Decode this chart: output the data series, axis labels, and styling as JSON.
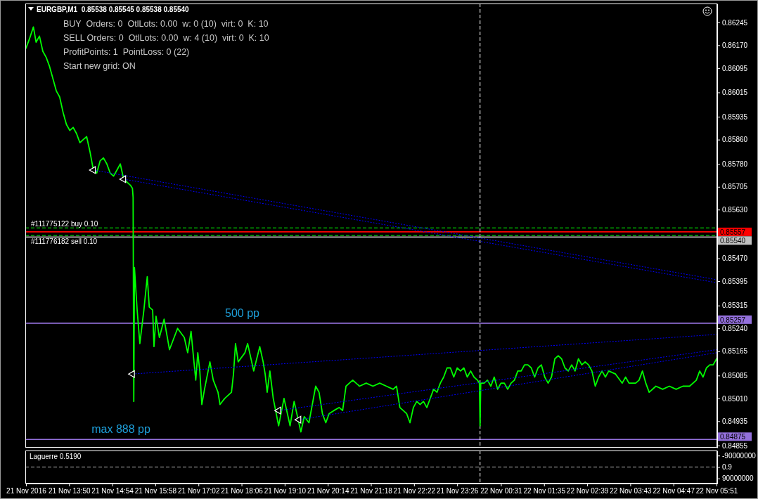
{
  "chart_data": [
    {
      "type": "line",
      "title": "EURGBP,M1  0.85538 0.85545 0.85538 0.85540",
      "annotations": [
        "BUY  Orders: 0  OtlLots: 0.00  w: 0 (10)  virt: 0  K: 10",
        "SELL Orders: 0  OtlLots: 0.00  w: 4 (10)  virt: 0  K: 10",
        "ProfitPoints: 1  PointLoss: 0 (22)",
        "Start new grid: ON",
        {
          "text": "500 pp",
          "x": "2016-11-21T18:07",
          "y": 0.85257
        },
        {
          "text": "max 888 pp",
          "x": "2016-11-21T15:07",
          "y": 0.84875
        }
      ],
      "xlim": [
        "2016-11-21T12:45",
        "2016-11-22T05:52"
      ],
      "ylim": [
        0.84848,
        0.86307
      ],
      "yticks": [
        0.86245,
        {
          "value": 0.8617,
          "label": "0.86170"
        },
        0.86095,
        0.86015,
        0.85935,
        {
          "value": 0.8586,
          "label": "0.85860"
        },
        {
          "value": 0.8578,
          "label": "0.85780"
        },
        0.85705,
        {
          "value": 0.8563,
          "label": "0.85630"
        },
        {
          "value": 0.8547,
          "label": "0.85470"
        },
        0.85395,
        0.85315,
        {
          "value": 0.8524,
          "label": "0.85240"
        },
        0.85165,
        0.85085,
        {
          "value": 0.8501,
          "label": "0.85010"
        },
        0.84935,
        0.84855
      ],
      "tick_labels": "y",
      "series": [
        {
          "color": "#00ff00",
          "x": [
            "2016-11-21T12:46",
            "2016-11-21T12:51",
            "2016-11-21T12:57",
            "2016-11-21T13:01",
            "2016-11-21T13:06",
            "2016-11-21T13:11",
            "2016-11-21T13:16",
            "2016-11-21T13:21",
            "2016-11-21T13:26",
            "2016-11-21T13:31",
            "2016-11-21T13:36",
            "2016-11-21T13:41",
            "2016-11-21T13:46",
            "2016-11-21T13:51",
            "2016-11-21T13:56",
            "2016-11-21T14:01",
            "2016-11-21T14:06",
            "2016-11-21T14:11",
            "2016-11-21T14:16",
            "2016-11-21T14:21",
            "2016-11-21T14:26",
            "2016-11-21T14:31",
            "2016-11-21T14:36",
            "2016-11-21T14:41",
            "2016-11-21T14:46",
            "2016-11-21T14:51",
            "2016-11-21T14:56",
            "2016-11-21T15:01",
            "2016-11-21T15:06",
            "2016-11-21T15:11",
            "2016-11-21T15:16",
            "2016-11-21T15:21",
            "2016-11-21T15:24",
            "2016-11-21T15:25",
            "2016-11-21T15:26",
            "2016-11-21T15:27",
            "2016-11-21T15:31",
            "2016-11-21T15:35",
            "2016-11-21T15:41",
            "2016-11-21T15:46",
            "2016-11-21T15:49",
            "2016-11-21T15:54",
            "2016-11-21T15:56",
            "2016-11-21T15:59",
            "2016-11-21T16:04",
            "2016-11-21T16:11",
            "2016-11-21T16:19",
            "2016-11-21T16:31",
            "2016-11-21T16:41",
            "2016-11-21T16:46",
            "2016-11-21T16:51",
            "2016-11-21T16:54",
            "2016-11-21T16:58",
            "2016-11-21T17:01",
            "2016-11-21T17:04",
            "2016-11-21T17:07",
            "2016-11-21T17:11",
            "2016-11-21T17:19",
            "2016-11-21T17:24",
            "2016-11-21T17:31",
            "2016-11-21T17:34",
            "2016-11-21T17:41",
            "2016-11-21T17:51",
            "2016-11-21T17:54",
            "2016-11-21T17:57",
            "2016-11-21T18:01",
            "2016-11-21T18:11",
            "2016-11-21T18:15",
            "2016-11-21T18:24",
            "2016-11-21T18:33",
            "2016-11-21T18:38",
            "2016-11-21T18:41",
            "2016-11-21T18:44",
            "2016-11-21T18:48",
            "2016-11-21T18:53",
            "2016-11-21T19:01",
            "2016-11-21T19:09",
            "2016-11-21T19:18",
            "2016-11-21T19:24",
            "2016-11-21T19:34",
            "2016-11-21T19:39",
            "2016-11-21T19:46",
            "2016-11-21T19:51",
            "2016-11-21T19:56",
            "2016-11-21T20:01",
            "2016-11-21T20:06",
            "2016-11-21T20:11",
            "2016-11-21T20:16",
            "2016-11-21T20:23",
            "2016-11-21T20:31",
            "2016-11-21T20:36",
            "2016-11-21T20:41",
            "2016-11-21T20:46",
            "2016-11-21T20:51",
            "2016-11-21T21:01",
            "2016-11-21T21:11",
            "2016-11-21T21:21",
            "2016-11-21T21:31",
            "2016-11-21T21:41",
            "2016-11-21T21:51",
            "2016-11-21T21:56",
            "2016-11-21T22:01",
            "2016-11-21T22:06",
            "2016-11-21T22:11",
            "2016-11-21T22:16",
            "2016-11-21T22:21",
            "2016-11-21T22:26",
            "2016-11-21T22:31",
            "2016-11-21T22:36",
            "2016-11-21T22:41",
            "2016-11-21T22:46",
            "2016-11-21T22:51",
            "2016-11-21T22:56",
            "2016-11-21T23:01",
            "2016-11-21T23:06",
            "2016-11-21T23:11",
            "2016-11-21T23:16",
            "2016-11-21T23:21",
            "2016-11-21T23:26",
            "2016-11-21T23:31",
            "2016-11-21T23:36",
            "2016-11-21T23:41",
            "2016-11-21T23:46",
            "2016-11-21T23:51",
            "2016-11-21T23:56",
            "2016-11-21T23:59",
            "2016-11-22T00:00",
            "2016-11-22T00:01",
            "2016-11-22T00:06",
            "2016-11-22T00:11",
            "2016-11-22T00:16",
            "2016-11-22T00:21",
            "2016-11-22T00:26",
            "2016-11-22T00:31",
            "2016-11-22T00:36",
            "2016-11-22T00:41",
            "2016-11-22T00:46",
            "2016-11-22T00:51",
            "2016-11-22T00:56",
            "2016-11-22T01:01",
            "2016-11-22T01:06",
            "2016-11-22T01:11",
            "2016-11-22T01:16",
            "2016-11-22T01:21",
            "2016-11-22T01:26",
            "2016-11-22T01:31",
            "2016-11-22T01:36",
            "2016-11-22T01:41",
            "2016-11-22T01:46",
            "2016-11-22T01:51",
            "2016-11-22T01:56",
            "2016-11-22T02:01",
            "2016-11-22T02:06",
            "2016-11-22T02:11",
            "2016-11-22T02:16",
            "2016-11-22T02:21",
            "2016-11-22T02:26",
            "2016-11-22T02:31",
            "2016-11-22T02:36",
            "2016-11-22T02:41",
            "2016-11-22T02:46",
            "2016-11-22T02:51",
            "2016-11-22T02:56",
            "2016-11-22T03:01",
            "2016-11-22T03:06",
            "2016-11-22T03:11",
            "2016-11-22T03:21",
            "2016-11-22T03:31",
            "2016-11-22T03:36",
            "2016-11-22T03:41",
            "2016-11-22T03:51",
            "2016-11-22T03:56",
            "2016-11-22T04:01",
            "2016-11-22T04:06",
            "2016-11-22T04:11",
            "2016-11-22T04:21",
            "2016-11-22T04:31",
            "2016-11-22T04:41",
            "2016-11-22T04:51",
            "2016-11-22T05:01",
            "2016-11-22T05:11",
            "2016-11-22T05:21",
            "2016-11-22T05:26",
            "2016-11-22T05:31",
            "2016-11-22T05:36",
            "2016-11-22T05:41",
            "2016-11-22T05:46",
            "2016-11-22T05:51"
          ],
          "values": [
            0.8616,
            0.8619,
            0.8623,
            0.8618,
            0.862,
            0.8615,
            0.8613,
            0.861,
            0.8606,
            0.8602,
            0.86,
            0.8595,
            0.8591,
            0.8589,
            0.859,
            0.8588,
            0.8585,
            0.8586,
            0.8587,
            0.8582,
            0.8576,
            0.8575,
            0.8579,
            0.858,
            0.8578,
            0.8575,
            0.8574,
            0.8576,
            0.8578,
            0.8573,
            0.8572,
            0.8571,
            0.857,
            0.8567,
            0.85,
            0.8544,
            0.853,
            0.8519,
            0.853,
            0.8541,
            0.8531,
            0.853,
            0.8518,
            0.8528,
            0.8521,
            0.8527,
            0.8517,
            0.8524,
            0.8521,
            0.8516,
            0.8523,
            0.8516,
            0.8507,
            0.8516,
            0.851,
            0.8499,
            0.8504,
            0.8513,
            0.8507,
            0.8503,
            0.8499,
            0.8501,
            0.8503,
            0.8509,
            0.8519,
            0.8513,
            0.8516,
            0.8519,
            0.851,
            0.8518,
            0.8513,
            0.8509,
            0.8503,
            0.851,
            0.8501,
            0.8492,
            0.8501,
            0.8492,
            0.85,
            0.849,
            0.8495,
            0.8493,
            0.8499,
            0.8505,
            0.8503,
            0.8496,
            0.8493,
            0.8496,
            0.8497,
            0.8498,
            0.8497,
            0.8505,
            0.8506,
            0.8507,
            0.8505,
            0.8506,
            0.8505,
            0.8506,
            0.8505,
            0.8504,
            0.8505,
            0.8498,
            0.8497,
            0.8496,
            0.8493,
            0.8498,
            0.85,
            0.8499,
            0.85,
            0.8498,
            0.8501,
            0.8504,
            0.8503,
            0.8506,
            0.8508,
            0.8511,
            0.8511,
            0.8508,
            0.8511,
            0.851,
            0.8511,
            0.8508,
            0.851,
            0.8508,
            0.8507,
            0.8506,
            0.8492,
            0.8506,
            0.8506,
            0.8507,
            0.8505,
            0.8508,
            0.8504,
            0.8506,
            0.8506,
            0.8504,
            0.8506,
            0.8507,
            0.851,
            0.851,
            0.8512,
            0.8512,
            0.8511,
            0.8508,
            0.8511,
            0.8512,
            0.8508,
            0.8506,
            0.8508,
            0.8514,
            0.8515,
            0.8514,
            0.8511,
            0.851,
            0.8512,
            0.851,
            0.8514,
            0.8512,
            0.8513,
            0.8512,
            0.851,
            0.8505,
            0.8508,
            0.851,
            0.8508,
            0.851,
            0.8509,
            0.8506,
            0.8508,
            0.8506,
            0.8506,
            0.8507,
            0.851,
            0.8506,
            0.8503,
            0.8505,
            0.8504,
            0.8505,
            0.8504,
            0.8505,
            0.8505,
            0.8507,
            0.851,
            0.8508,
            0.8511,
            0.8512,
            0.8512,
            0.8514
          ]
        },
        {
          "type": "line",
          "color": "#0000ff",
          "line_style": "dotted",
          "x": [
            "2016-11-21T14:26",
            "2016-11-22T05:51"
          ],
          "values": [
            0.8576,
            0.854
          ]
        },
        {
          "type": "line",
          "color": "#0000ff",
          "line_style": "dotted",
          "x": [
            "2016-11-21T15:11",
            "2016-11-22T05:51"
          ],
          "values": [
            0.8573,
            0.8539
          ]
        },
        {
          "type": "line",
          "color": "#0000ff",
          "line_style": "dotted",
          "x": [
            "2016-11-21T15:24",
            "2016-11-22T05:51"
          ],
          "values": [
            0.8509,
            0.8522
          ]
        },
        {
          "type": "line",
          "color": "#0000ff",
          "line_style": "dotted",
          "x": [
            "2016-11-21T19:01",
            "2016-11-22T05:51"
          ],
          "values": [
            0.8497,
            0.8517
          ]
        },
        {
          "type": "line",
          "color": "#0000ff",
          "line_style": "dotted",
          "x": [
            "2016-11-21T19:31",
            "2016-11-22T05:51"
          ],
          "values": [
            0.8494,
            0.8516
          ]
        },
        {
          "type": "scatter",
          "color": "#ffffff",
          "marker": "triangle",
          "x": [
            "2016-11-21T14:26",
            "2016-11-21T15:11",
            "2016-11-21T15:24",
            "2016-11-21T19:01",
            "2016-11-21T19:31"
          ],
          "values": [
            0.8576,
            0.8573,
            0.8509,
            0.8497,
            0.8494
          ]
        }
      ],
      "ref_lines": [
        {
          "axis": "y",
          "value": 0.8557,
          "label": "#111775122 buy 0.10",
          "color": "#00ff00",
          "line_style": "dashed"
        },
        {
          "axis": "y",
          "value": 0.85557,
          "label": "0.85557",
          "color": "#ff0000"
        },
        {
          "axis": "y",
          "value": 0.85545,
          "label": "#111776182 sell 0.10",
          "color": "#00ff00",
          "line_style": "dashed"
        },
        {
          "axis": "y",
          "value": 0.8554,
          "label": "0.85540",
          "color": "#c0c0c0"
        },
        {
          "axis": "y",
          "value": 0.85257,
          "label": "0.85257",
          "color": "#9370db"
        },
        {
          "axis": "y",
          "value": 0.84875,
          "label": "0.84875",
          "color": "#9370db"
        },
        {
          "axis": "x",
          "value": "2016-11-22T00:00",
          "color": "#ffffff",
          "line_style": "dashed"
        }
      ]
    },
    {
      "type": "line",
      "title": "Laguerre 0.5190",
      "xlim": [
        "2016-11-21T12:45",
        "2016-11-22T05:52"
      ],
      "xticks": [
        {
          "value": "2016-11-21T12:46",
          "label": "21 Nov 2016"
        },
        {
          "value": "2016-11-21T13:50",
          "label": "21 Nov 13:50"
        },
        {
          "value": "2016-11-21T14:54",
          "label": "21 Nov 14:54"
        },
        {
          "value": "2016-11-21T15:58",
          "label": "21 Nov 15:58"
        },
        {
          "value": "2016-11-21T17:02",
          "label": "21 Nov 17:02"
        },
        {
          "value": "2016-11-21T18:06",
          "label": "21 Nov 18:06"
        },
        {
          "value": "2016-11-21T19:10",
          "label": "21 Nov 19:10"
        },
        {
          "value": "2016-11-21T20:14",
          "label": "21 Nov 20:14"
        },
        {
          "value": "2016-11-21T21:18",
          "label": "21 Nov 21:18"
        },
        {
          "value": "2016-11-21T22:22",
          "label": "21 Nov 22:22"
        },
        {
          "value": "2016-11-21T23:26",
          "label": "21 Nov 23:26"
        },
        {
          "value": "2016-11-22T00:31",
          "label": "22 Nov 00:31"
        },
        {
          "value": "2016-11-22T01:35",
          "label": "22 Nov 01:35"
        },
        {
          "value": "2016-11-22T02:39",
          "label": "22 Nov 02:39"
        },
        {
          "value": "2016-11-22T03:43",
          "label": "22 Nov 03:43"
        },
        {
          "value": "2016-11-22T04:47",
          "label": "22 Nov 04:47"
        },
        {
          "value": "2016-11-22T05:51",
          "label": "22 Nov 05:51"
        }
      ],
      "ylim": [
        130000000,
        -130000000
      ],
      "yticks": [
        -90000000,
        0.9,
        90000000
      ],
      "ref_lines": [
        {
          "axis": "y",
          "value": 0.9,
          "color": "#c0c0c0",
          "line_style": "dashed"
        },
        {
          "axis": "x",
          "value": "2016-11-22T00:00",
          "color": "#ffffff",
          "line_style": "dashed"
        }
      ]
    }
  ]
}
